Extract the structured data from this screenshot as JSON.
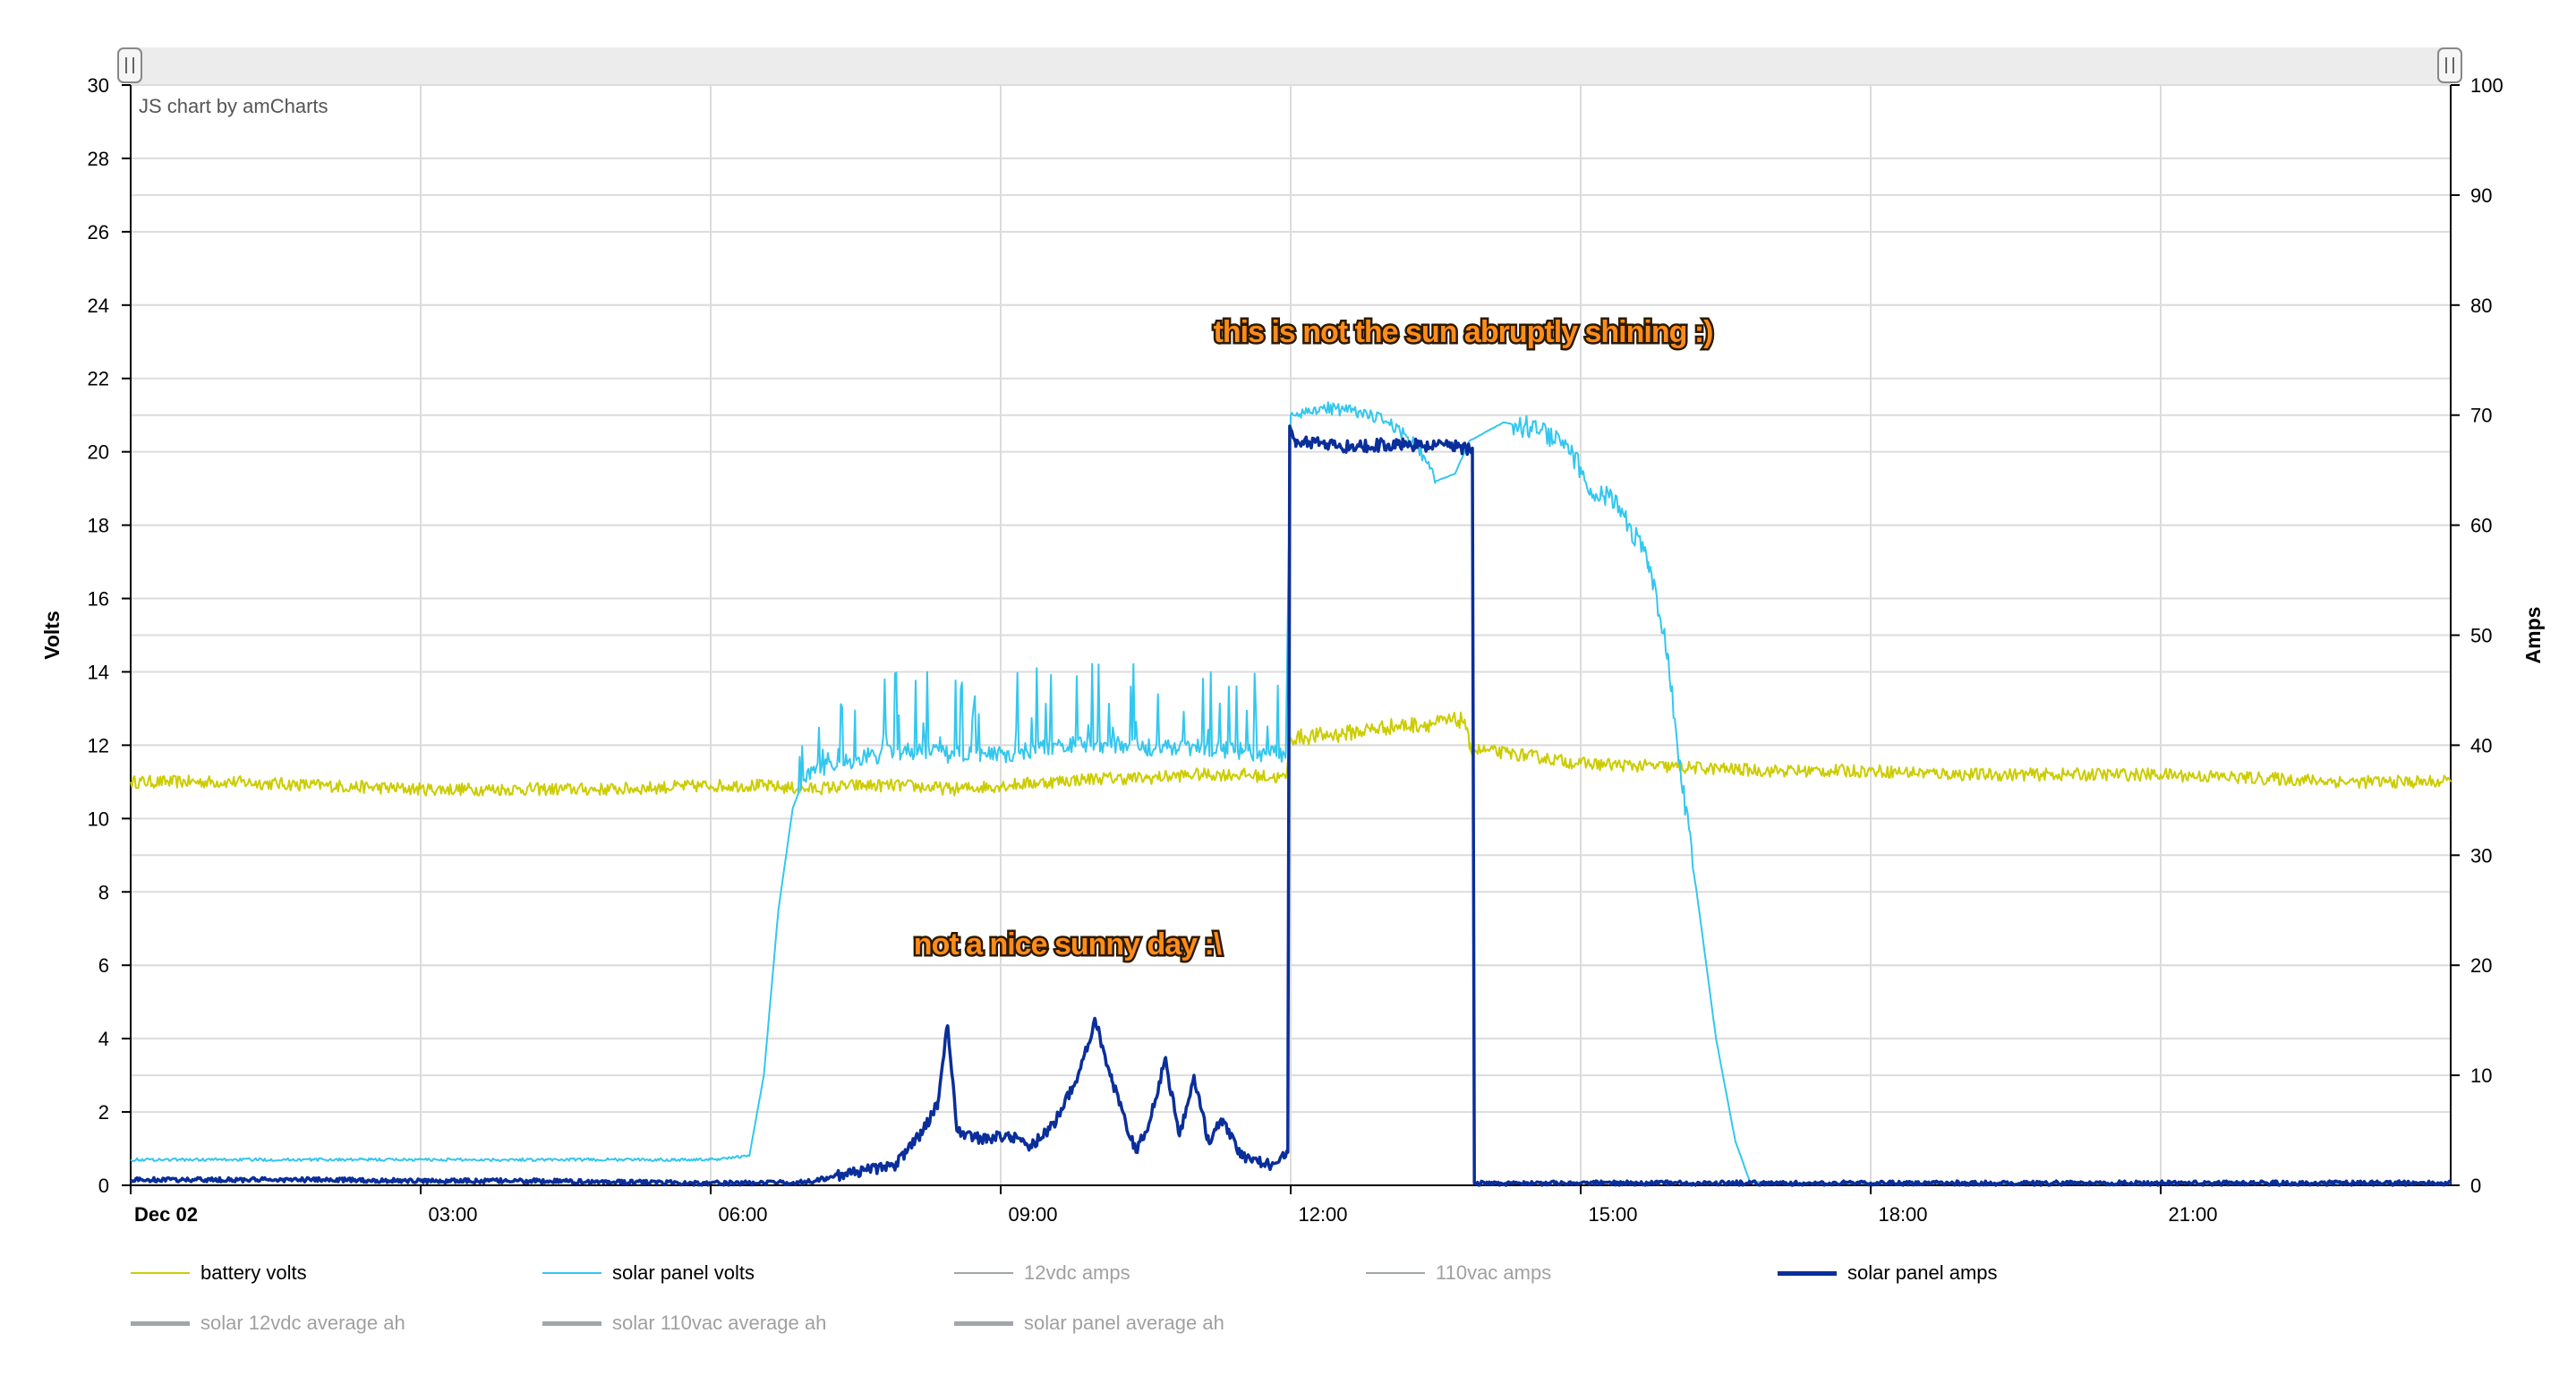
{
  "credit": "JS chart by amCharts",
  "annotations": [
    {
      "text": "this is not the sun abruptly shining :)",
      "x_hour": 11.2,
      "y_volts": 23.0
    },
    {
      "text": "not a nice sunny day :\\",
      "x_hour": 8.1,
      "y_volts": 6.3
    }
  ],
  "legend": [
    {
      "name": "battery volts",
      "color": "#cccc00",
      "visible": true,
      "thick": false
    },
    {
      "name": "solar panel volts",
      "color": "#33c7ee",
      "visible": true,
      "thick": false
    },
    {
      "name": "12vdc amps",
      "color": "#a0a6ab",
      "visible": false,
      "thick": false
    },
    {
      "name": "110vac amps",
      "color": "#a0a6ab",
      "visible": false,
      "thick": false
    },
    {
      "name": "solar panel amps",
      "color": "#0a2e9a",
      "visible": true,
      "thick": true
    },
    {
      "name": "solar 12vdc average ah",
      "color": "#a0a6ab",
      "visible": false,
      "thick": true
    },
    {
      "name": "solar 110vac average ah",
      "color": "#a0a6ab",
      "visible": false,
      "thick": true
    },
    {
      "name": "solar panel average ah",
      "color": "#a0a6ab",
      "visible": false,
      "thick": true
    }
  ],
  "chart_data": {
    "type": "line",
    "x_unit": "hour of day",
    "xlim": [
      0,
      24
    ],
    "x_ticks": [
      {
        "h": 0,
        "label": "Dec 02"
      },
      {
        "h": 3,
        "label": "03:00"
      },
      {
        "h": 6,
        "label": "06:00"
      },
      {
        "h": 9,
        "label": "09:00"
      },
      {
        "h": 12,
        "label": "12:00"
      },
      {
        "h": 15,
        "label": "15:00"
      },
      {
        "h": 18,
        "label": "18:00"
      },
      {
        "h": 21,
        "label": "21:00"
      }
    ],
    "y_left": {
      "label": "Volts",
      "lim": [
        0,
        30
      ],
      "ticks": [
        0,
        2,
        4,
        6,
        8,
        10,
        12,
        14,
        16,
        18,
        20,
        22,
        24,
        26,
        28,
        30
      ]
    },
    "y_right": {
      "label": "Amps",
      "lim": [
        0,
        100
      ],
      "ticks": [
        0,
        10,
        20,
        30,
        40,
        50,
        60,
        70,
        80,
        90,
        100
      ]
    },
    "grid": true,
    "legend_position": "bottom",
    "series": [
      {
        "name": "battery volts",
        "axis": "left",
        "color": "#cccc00",
        "x": [
          0,
          1,
          2,
          3,
          4,
          5,
          6,
          6.5,
          7,
          7.5,
          8,
          8.5,
          9,
          9.5,
          10,
          10.5,
          11,
          11.5,
          11.95,
          12.0,
          12.5,
          13,
          13.5,
          13.8,
          13.85,
          14.5,
          15,
          16,
          17,
          18,
          19,
          20,
          21,
          22,
          23,
          24
        ],
        "y": [
          11.0,
          11.0,
          10.9,
          10.8,
          10.8,
          10.8,
          10.9,
          10.9,
          10.8,
          10.9,
          10.9,
          10.8,
          10.9,
          11.0,
          11.1,
          11.1,
          11.2,
          11.2,
          11.1,
          12.2,
          12.3,
          12.5,
          12.6,
          12.7,
          11.9,
          11.7,
          11.5,
          11.4,
          11.3,
          11.3,
          11.2,
          11.2,
          11.2,
          11.1,
          11.0,
          11.0
        ]
      },
      {
        "name": "solar panel volts",
        "axis": "left",
        "color": "#33c7ee",
        "x": [
          0,
          1,
          2,
          3,
          4,
          5,
          6,
          6.4,
          6.55,
          6.7,
          6.85,
          7.0,
          7.5,
          8,
          8.5,
          9,
          9.5,
          10,
          10.5,
          11,
          11.5,
          11.95,
          12.0,
          12.3,
          12.7,
          13,
          13.3,
          13.5,
          13.7,
          13.85,
          14.2,
          14.6,
          14.9,
          15.1,
          15.3,
          15.5,
          15.7,
          15.9,
          16.0,
          16.2,
          16.4,
          16.6,
          16.75,
          17,
          18,
          19,
          20,
          21,
          22,
          23,
          24
        ],
        "y": [
          0.7,
          0.7,
          0.7,
          0.7,
          0.7,
          0.7,
          0.7,
          0.8,
          3.0,
          7.5,
          10.3,
          11.3,
          11.7,
          11.9,
          11.8,
          11.8,
          12.0,
          12.1,
          12.0,
          12.0,
          11.9,
          11.8,
          21.0,
          21.2,
          21.1,
          20.8,
          20.2,
          19.2,
          19.4,
          20.3,
          20.8,
          20.6,
          20.0,
          19.0,
          18.8,
          18.0,
          17.0,
          14.5,
          12.0,
          8.0,
          4.0,
          1.2,
          0.1,
          0.05,
          0.05,
          0.05,
          0.05,
          0.05,
          0.05,
          0.05,
          0.05
        ]
      },
      {
        "name": "solar panel amps",
        "axis": "right",
        "color": "#0a2e9a",
        "x": [
          0,
          1,
          2,
          3,
          4,
          5,
          6,
          6.5,
          7,
          7.5,
          7.9,
          8.2,
          8.35,
          8.45,
          8.55,
          8.8,
          9.1,
          9.3,
          9.55,
          9.8,
          9.98,
          10.15,
          10.4,
          10.55,
          10.7,
          10.85,
          11.0,
          11.15,
          11.3,
          11.5,
          11.8,
          11.97,
          11.99,
          12.05,
          12.5,
          13.0,
          13.5,
          13.88,
          13.9,
          15,
          16,
          17,
          18,
          19,
          20,
          21,
          22,
          23,
          24
        ],
        "y": [
          0.5,
          0.5,
          0.5,
          0.4,
          0.4,
          0.3,
          0.2,
          0.2,
          0.3,
          1.2,
          1.8,
          5.0,
          7.5,
          14.5,
          5.0,
          4.2,
          4.5,
          3.5,
          5.5,
          10.0,
          15.0,
          9.5,
          3.0,
          6.0,
          11.5,
          4.5,
          10.0,
          4.0,
          6.0,
          2.5,
          1.8,
          3.0,
          69.0,
          67.5,
          67.2,
          67.3,
          67.2,
          67.0,
          0.2,
          0.2,
          0.2,
          0.2,
          0.2,
          0.2,
          0.2,
          0.2,
          0.2,
          0.2,
          0.2
        ]
      }
    ]
  }
}
